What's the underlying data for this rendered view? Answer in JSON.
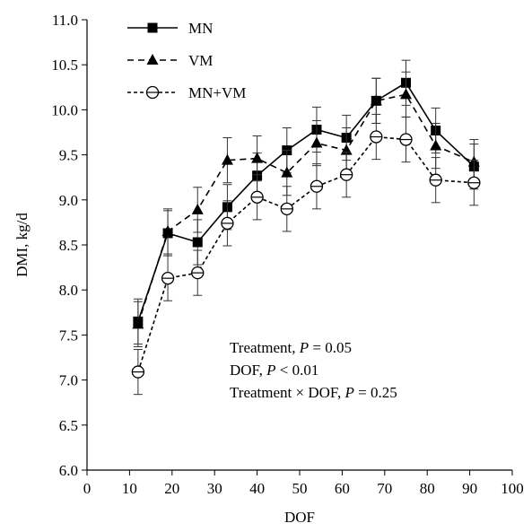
{
  "chart_data": {
    "type": "line",
    "x": [
      12,
      19,
      26,
      33,
      40,
      47,
      54,
      61,
      68,
      75,
      82,
      91
    ],
    "series": [
      {
        "name": "MN",
        "marker": "square",
        "line": "solid",
        "values": [
          7.65,
          8.63,
          8.53,
          8.92,
          9.27,
          9.55,
          9.78,
          9.69,
          10.1,
          10.3,
          9.77,
          9.37
        ],
        "errors": [
          0.25,
          0.25,
          0.25,
          0.25,
          0.25,
          0.25,
          0.25,
          0.25,
          0.25,
          0.25,
          0.25,
          0.25
        ]
      },
      {
        "name": "VM",
        "marker": "triangle",
        "line": "dashed",
        "values": [
          7.62,
          8.65,
          8.89,
          9.44,
          9.46,
          9.3,
          9.63,
          9.55,
          10.1,
          10.17,
          9.6,
          9.42
        ],
        "errors": [
          0.25,
          0.25,
          0.25,
          0.25,
          0.25,
          0.25,
          0.25,
          0.25,
          0.25,
          0.25,
          0.25,
          0.25
        ]
      },
      {
        "name": "MN+VM",
        "marker": "circle-dot",
        "line": "dotted",
        "values": [
          7.09,
          8.13,
          8.19,
          8.74,
          9.03,
          8.9,
          9.15,
          9.28,
          9.7,
          9.67,
          9.22,
          9.19
        ],
        "errors": [
          0.25,
          0.25,
          0.25,
          0.25,
          0.25,
          0.25,
          0.25,
          0.25,
          0.25,
          0.25,
          0.25,
          0.25
        ]
      }
    ],
    "xlabel": "DOF",
    "ylabel": "DMI, kg/d",
    "xlim": [
      0,
      100
    ],
    "ylim": [
      6.0,
      11.0
    ],
    "xticks": [
      "0",
      "10",
      "20",
      "30",
      "40",
      "50",
      "60",
      "70",
      "80",
      "90",
      "100"
    ],
    "yticks": [
      "6.0",
      "6.5",
      "7.0",
      "7.5",
      "8.0",
      "8.5",
      "9.0",
      "9.5",
      "10.0",
      "10.5",
      "11.0"
    ],
    "grid": false,
    "legend_position": "top-left",
    "annotations": [
      "Treatment, P = 0.05",
      "DOF, P < 0.01",
      "Treatment × DOF, P = 0.25"
    ]
  }
}
